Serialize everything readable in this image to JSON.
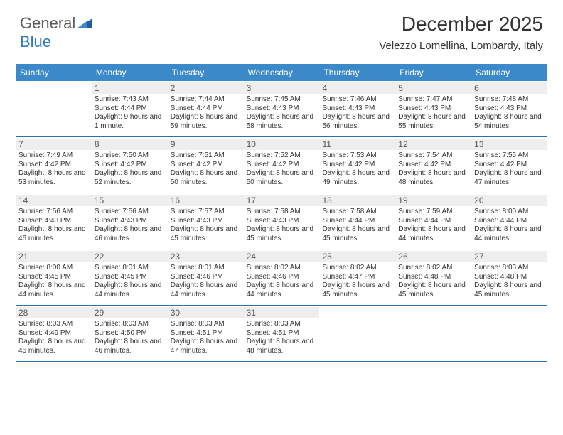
{
  "logo": {
    "part1": "General",
    "part2": "Blue"
  },
  "header": {
    "month_title": "December 2025",
    "location": "Velezzo Lomellina, Lombardy, Italy"
  },
  "colors": {
    "header_bg": "#3b89c9",
    "header_text": "#ffffff",
    "daynum_bg": "#eeeeee",
    "daynum_text": "#555555",
    "body_text": "#333333",
    "divider": "#2f6fa8",
    "logo_gray": "#5a5a5a",
    "logo_blue": "#2f7bbf"
  },
  "day_names": [
    "Sunday",
    "Monday",
    "Tuesday",
    "Wednesday",
    "Thursday",
    "Friday",
    "Saturday"
  ],
  "weeks": [
    [
      {
        "n": "",
        "sr": "",
        "ss": "",
        "dl": ""
      },
      {
        "n": "1",
        "sr": "Sunrise: 7:43 AM",
        "ss": "Sunset: 4:44 PM",
        "dl": "Daylight: 9 hours and 1 minute."
      },
      {
        "n": "2",
        "sr": "Sunrise: 7:44 AM",
        "ss": "Sunset: 4:44 PM",
        "dl": "Daylight: 8 hours and 59 minutes."
      },
      {
        "n": "3",
        "sr": "Sunrise: 7:45 AM",
        "ss": "Sunset: 4:43 PM",
        "dl": "Daylight: 8 hours and 58 minutes."
      },
      {
        "n": "4",
        "sr": "Sunrise: 7:46 AM",
        "ss": "Sunset: 4:43 PM",
        "dl": "Daylight: 8 hours and 56 minutes."
      },
      {
        "n": "5",
        "sr": "Sunrise: 7:47 AM",
        "ss": "Sunset: 4:43 PM",
        "dl": "Daylight: 8 hours and 55 minutes."
      },
      {
        "n": "6",
        "sr": "Sunrise: 7:48 AM",
        "ss": "Sunset: 4:43 PM",
        "dl": "Daylight: 8 hours and 54 minutes."
      }
    ],
    [
      {
        "n": "7",
        "sr": "Sunrise: 7:49 AM",
        "ss": "Sunset: 4:42 PM",
        "dl": "Daylight: 8 hours and 53 minutes."
      },
      {
        "n": "8",
        "sr": "Sunrise: 7:50 AM",
        "ss": "Sunset: 4:42 PM",
        "dl": "Daylight: 8 hours and 52 minutes."
      },
      {
        "n": "9",
        "sr": "Sunrise: 7:51 AM",
        "ss": "Sunset: 4:42 PM",
        "dl": "Daylight: 8 hours and 50 minutes."
      },
      {
        "n": "10",
        "sr": "Sunrise: 7:52 AM",
        "ss": "Sunset: 4:42 PM",
        "dl": "Daylight: 8 hours and 50 minutes."
      },
      {
        "n": "11",
        "sr": "Sunrise: 7:53 AM",
        "ss": "Sunset: 4:42 PM",
        "dl": "Daylight: 8 hours and 49 minutes."
      },
      {
        "n": "12",
        "sr": "Sunrise: 7:54 AM",
        "ss": "Sunset: 4:42 PM",
        "dl": "Daylight: 8 hours and 48 minutes."
      },
      {
        "n": "13",
        "sr": "Sunrise: 7:55 AM",
        "ss": "Sunset: 4:42 PM",
        "dl": "Daylight: 8 hours and 47 minutes."
      }
    ],
    [
      {
        "n": "14",
        "sr": "Sunrise: 7:56 AM",
        "ss": "Sunset: 4:43 PM",
        "dl": "Daylight: 8 hours and 46 minutes."
      },
      {
        "n": "15",
        "sr": "Sunrise: 7:56 AM",
        "ss": "Sunset: 4:43 PM",
        "dl": "Daylight: 8 hours and 46 minutes."
      },
      {
        "n": "16",
        "sr": "Sunrise: 7:57 AM",
        "ss": "Sunset: 4:43 PM",
        "dl": "Daylight: 8 hours and 45 minutes."
      },
      {
        "n": "17",
        "sr": "Sunrise: 7:58 AM",
        "ss": "Sunset: 4:43 PM",
        "dl": "Daylight: 8 hours and 45 minutes."
      },
      {
        "n": "18",
        "sr": "Sunrise: 7:58 AM",
        "ss": "Sunset: 4:44 PM",
        "dl": "Daylight: 8 hours and 45 minutes."
      },
      {
        "n": "19",
        "sr": "Sunrise: 7:59 AM",
        "ss": "Sunset: 4:44 PM",
        "dl": "Daylight: 8 hours and 44 minutes."
      },
      {
        "n": "20",
        "sr": "Sunrise: 8:00 AM",
        "ss": "Sunset: 4:44 PM",
        "dl": "Daylight: 8 hours and 44 minutes."
      }
    ],
    [
      {
        "n": "21",
        "sr": "Sunrise: 8:00 AM",
        "ss": "Sunset: 4:45 PM",
        "dl": "Daylight: 8 hours and 44 minutes."
      },
      {
        "n": "22",
        "sr": "Sunrise: 8:01 AM",
        "ss": "Sunset: 4:45 PM",
        "dl": "Daylight: 8 hours and 44 minutes."
      },
      {
        "n": "23",
        "sr": "Sunrise: 8:01 AM",
        "ss": "Sunset: 4:46 PM",
        "dl": "Daylight: 8 hours and 44 minutes."
      },
      {
        "n": "24",
        "sr": "Sunrise: 8:02 AM",
        "ss": "Sunset: 4:46 PM",
        "dl": "Daylight: 8 hours and 44 minutes."
      },
      {
        "n": "25",
        "sr": "Sunrise: 8:02 AM",
        "ss": "Sunset: 4:47 PM",
        "dl": "Daylight: 8 hours and 45 minutes."
      },
      {
        "n": "26",
        "sr": "Sunrise: 8:02 AM",
        "ss": "Sunset: 4:48 PM",
        "dl": "Daylight: 8 hours and 45 minutes."
      },
      {
        "n": "27",
        "sr": "Sunrise: 8:03 AM",
        "ss": "Sunset: 4:48 PM",
        "dl": "Daylight: 8 hours and 45 minutes."
      }
    ],
    [
      {
        "n": "28",
        "sr": "Sunrise: 8:03 AM",
        "ss": "Sunset: 4:49 PM",
        "dl": "Daylight: 8 hours and 46 minutes."
      },
      {
        "n": "29",
        "sr": "Sunrise: 8:03 AM",
        "ss": "Sunset: 4:50 PM",
        "dl": "Daylight: 8 hours and 46 minutes."
      },
      {
        "n": "30",
        "sr": "Sunrise: 8:03 AM",
        "ss": "Sunset: 4:51 PM",
        "dl": "Daylight: 8 hours and 47 minutes."
      },
      {
        "n": "31",
        "sr": "Sunrise: 8:03 AM",
        "ss": "Sunset: 4:51 PM",
        "dl": "Daylight: 8 hours and 48 minutes."
      },
      {
        "n": "",
        "sr": "",
        "ss": "",
        "dl": ""
      },
      {
        "n": "",
        "sr": "",
        "ss": "",
        "dl": ""
      },
      {
        "n": "",
        "sr": "",
        "ss": "",
        "dl": ""
      }
    ]
  ]
}
